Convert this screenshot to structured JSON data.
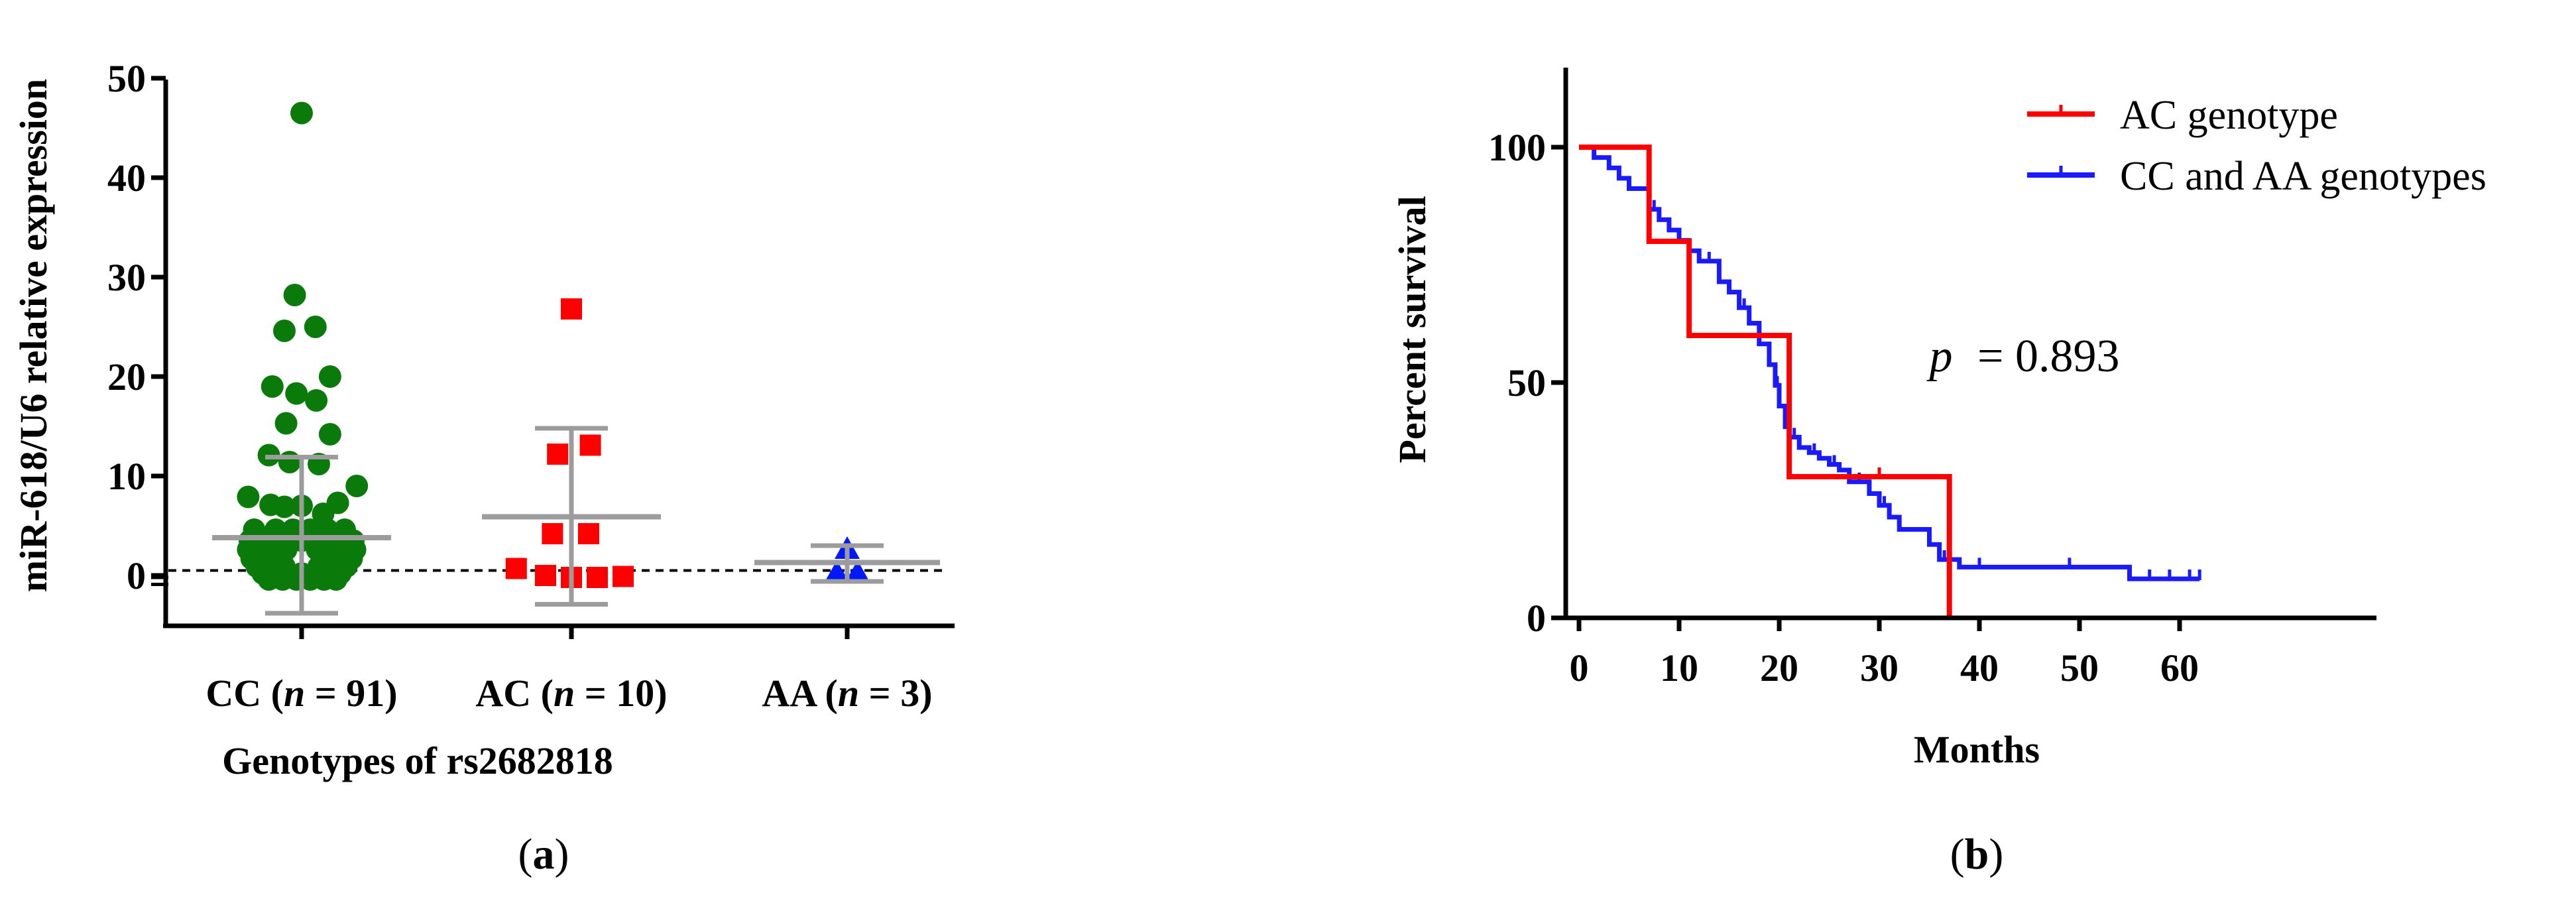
{
  "chart_data": [
    {
      "panel": "(a)",
      "panel_parts": [
        "(",
        "a",
        ")"
      ],
      "type": "scatter",
      "xlabel": "Genotypes of rs2682818",
      "ylabel": "miR-618/U6 relative expression",
      "ylim": [
        -5,
        50
      ],
      "yticks": [
        0,
        10,
        20,
        30,
        40,
        50
      ],
      "reference_line_y": 0.5,
      "categories": [
        {
          "label_parts": [
            "CC (",
            "n",
            " = 91)"
          ]
        },
        {
          "label_parts": [
            "AC (",
            "n",
            " = 10)"
          ]
        },
        {
          "label_parts": [
            "AA (",
            "n",
            " = 3)"
          ]
        }
      ],
      "series": [
        {
          "category_index": 0,
          "marker": "circle",
          "color": "#0a7a0a",
          "mean": 3.8,
          "sd_upper": 11.9,
          "sd_lower": -3.8,
          "points": [
            {
              "x": 0.0,
              "y": 46.5
            },
            {
              "x": -0.08,
              "y": 28.2
            },
            {
              "x": -0.2,
              "y": 24.6
            },
            {
              "x": 0.16,
              "y": 25.0
            },
            {
              "x": -0.34,
              "y": 19.0
            },
            {
              "x": -0.06,
              "y": 18.3
            },
            {
              "x": 0.33,
              "y": 20.0
            },
            {
              "x": 0.17,
              "y": 17.6
            },
            {
              "x": -0.18,
              "y": 15.3
            },
            {
              "x": 0.33,
              "y": 14.2
            },
            {
              "x": -0.38,
              "y": 12.1
            },
            {
              "x": -0.14,
              "y": 11.4
            },
            {
              "x": 0.2,
              "y": 11.2
            },
            {
              "x": -0.62,
              "y": 7.9
            },
            {
              "x": -0.36,
              "y": 7.1
            },
            {
              "x": -0.2,
              "y": 6.9
            },
            {
              "x": 0.0,
              "y": 7.0
            },
            {
              "x": 0.25,
              "y": 6.2
            },
            {
              "x": 0.42,
              "y": 7.3
            },
            {
              "x": 0.64,
              "y": 9.0
            },
            {
              "x": -0.55,
              "y": 4.6
            },
            {
              "x": -0.3,
              "y": 4.6
            },
            {
              "x": -0.1,
              "y": 4.6
            },
            {
              "x": 0.1,
              "y": 4.6
            },
            {
              "x": 0.3,
              "y": 4.6
            },
            {
              "x": 0.5,
              "y": 4.6
            },
            {
              "x": -0.6,
              "y": 3.5
            },
            {
              "x": -0.45,
              "y": 3.5
            },
            {
              "x": -0.3,
              "y": 3.5
            },
            {
              "x": -0.15,
              "y": 3.5
            },
            {
              "x": 0.0,
              "y": 3.5
            },
            {
              "x": 0.15,
              "y": 3.5
            },
            {
              "x": 0.3,
              "y": 3.5
            },
            {
              "x": 0.45,
              "y": 3.5
            },
            {
              "x": 0.6,
              "y": 3.5
            },
            {
              "x": -0.62,
              "y": 2.6
            },
            {
              "x": -0.48,
              "y": 2.6
            },
            {
              "x": -0.33,
              "y": 2.6
            },
            {
              "x": -0.18,
              "y": 2.6
            },
            {
              "x": 0.18,
              "y": 2.6
            },
            {
              "x": 0.33,
              "y": 2.6
            },
            {
              "x": 0.48,
              "y": 2.6
            },
            {
              "x": 0.62,
              "y": 2.6
            },
            {
              "x": -0.58,
              "y": 1.7
            },
            {
              "x": -0.42,
              "y": 1.7
            },
            {
              "x": -0.26,
              "y": 1.7
            },
            {
              "x": 0.26,
              "y": 1.7
            },
            {
              "x": 0.42,
              "y": 1.7
            },
            {
              "x": 0.58,
              "y": 1.7
            },
            {
              "x": -0.52,
              "y": 0.9
            },
            {
              "x": -0.36,
              "y": 0.9
            },
            {
              "x": -0.2,
              "y": 0.9
            },
            {
              "x": 0.2,
              "y": 0.9
            },
            {
              "x": 0.36,
              "y": 0.9
            },
            {
              "x": 0.52,
              "y": 0.9
            },
            {
              "x": -0.45,
              "y": 0.2
            },
            {
              "x": -0.3,
              "y": 0.2
            },
            {
              "x": -0.15,
              "y": 0.2
            },
            {
              "x": 0.0,
              "y": 0.2
            },
            {
              "x": 0.15,
              "y": 0.2
            },
            {
              "x": 0.3,
              "y": 0.2
            },
            {
              "x": 0.45,
              "y": 0.2
            },
            {
              "x": -0.38,
              "y": -0.4
            },
            {
              "x": -0.22,
              "y": -0.4
            },
            {
              "x": -0.06,
              "y": -0.4
            },
            {
              "x": 0.1,
              "y": -0.4
            },
            {
              "x": 0.26,
              "y": -0.4
            },
            {
              "x": 0.4,
              "y": -0.4
            }
          ]
        },
        {
          "category_index": 1,
          "marker": "square",
          "color": "#ff0000",
          "mean": 5.9,
          "sd_upper": 14.8,
          "sd_lower": -2.9,
          "points": [
            {
              "x": 0.0,
              "y": 26.8
            },
            {
              "x": 0.22,
              "y": 13.1
            },
            {
              "x": -0.16,
              "y": 12.2
            },
            {
              "x": -0.22,
              "y": 4.2
            },
            {
              "x": 0.2,
              "y": 4.2
            },
            {
              "x": -0.64,
              "y": 0.7
            },
            {
              "x": -0.3,
              "y": 0.0
            },
            {
              "x": 0.0,
              "y": -0.2
            },
            {
              "x": 0.3,
              "y": -0.2
            },
            {
              "x": 0.6,
              "y": -0.1
            }
          ]
        },
        {
          "category_index": 2,
          "marker": "triangle",
          "color": "#0018ff",
          "mean": 1.3,
          "sd_upper": 3.0,
          "sd_lower": -0.6,
          "points": [
            {
              "x": 0.0,
              "y": 2.6
            },
            {
              "x": -0.12,
              "y": 0.2
            },
            {
              "x": 0.12,
              "y": 0.2
            }
          ]
        }
      ]
    },
    {
      "panel": "(b)",
      "panel_parts": [
        "(",
        "b",
        ")"
      ],
      "type": "line",
      "subtype": "kaplan-meier",
      "xlabel": "Months",
      "ylabel": "Percent survival",
      "xlim": [
        0,
        65
      ],
      "ylim": [
        0,
        110
      ],
      "xticks": [
        0,
        10,
        20,
        30,
        40,
        50,
        60
      ],
      "yticks": [
        0,
        50,
        100
      ],
      "annotation": {
        "symbol": "p",
        "rest": " = 0.893",
        "x": 35,
        "y": 60
      },
      "legend_position": "top-right",
      "series": [
        {
          "name": "AC genotype",
          "color": "#ff0000",
          "steps": [
            [
              0,
              100
            ],
            [
              7,
              80
            ],
            [
              11,
              60
            ],
            [
              21,
              30
            ],
            [
              37,
              0
            ]
          ],
          "end_x": 37,
          "censor_marks": [
            [
              30,
              30
            ]
          ]
        },
        {
          "name": "CC and AA genotypes",
          "color": "#1a1aff",
          "steps": [
            [
              0,
              100
            ],
            [
              1.5,
              97.8
            ],
            [
              3,
              95.6
            ],
            [
              4,
              93.4
            ],
            [
              5,
              91.2
            ],
            [
              7,
              86.8
            ],
            [
              8,
              84.6
            ],
            [
              9,
              82.4
            ],
            [
              10,
              80.2
            ],
            [
              11,
              78
            ],
            [
              12,
              75.8
            ],
            [
              14,
              71.4
            ],
            [
              15,
              69.2
            ],
            [
              16,
              65.9
            ],
            [
              17,
              62.6
            ],
            [
              18,
              58.2
            ],
            [
              19,
              53.8
            ],
            [
              19.6,
              49.4
            ],
            [
              20,
              45
            ],
            [
              20.6,
              40.6
            ],
            [
              21,
              38.4
            ],
            [
              22,
              36.2
            ],
            [
              23,
              35.1
            ],
            [
              24,
              33.9
            ],
            [
              25,
              32.6
            ],
            [
              26,
              31.4
            ],
            [
              27,
              28.9
            ],
            [
              29,
              26.4
            ],
            [
              30,
              23.9
            ],
            [
              31,
              21.4
            ],
            [
              32,
              18.8
            ],
            [
              35,
              15.6
            ],
            [
              36,
              12.4
            ],
            [
              38,
              10.8
            ],
            [
              45,
              10.8
            ],
            [
              55,
              8.3
            ]
          ],
          "end_x": 62,
          "censor_marks": [
            [
              1.5,
              97.8
            ],
            [
              3,
              95.6
            ],
            [
              5,
              91.2
            ],
            [
              7.5,
              86.8
            ],
            [
              13,
              75.8
            ],
            [
              16.5,
              65.9
            ],
            [
              19.8,
              49.4
            ],
            [
              21.5,
              38.4
            ],
            [
              23.5,
              35.1
            ],
            [
              25.5,
              32.6
            ],
            [
              28,
              28.9
            ],
            [
              30.5,
              23.9
            ],
            [
              36.5,
              12.4
            ],
            [
              40,
              10.8
            ],
            [
              49,
              10.8
            ],
            [
              57,
              8.3
            ],
            [
              59,
              8.3
            ],
            [
              61,
              8.3
            ],
            [
              62,
              8.3
            ]
          ]
        }
      ]
    }
  ]
}
